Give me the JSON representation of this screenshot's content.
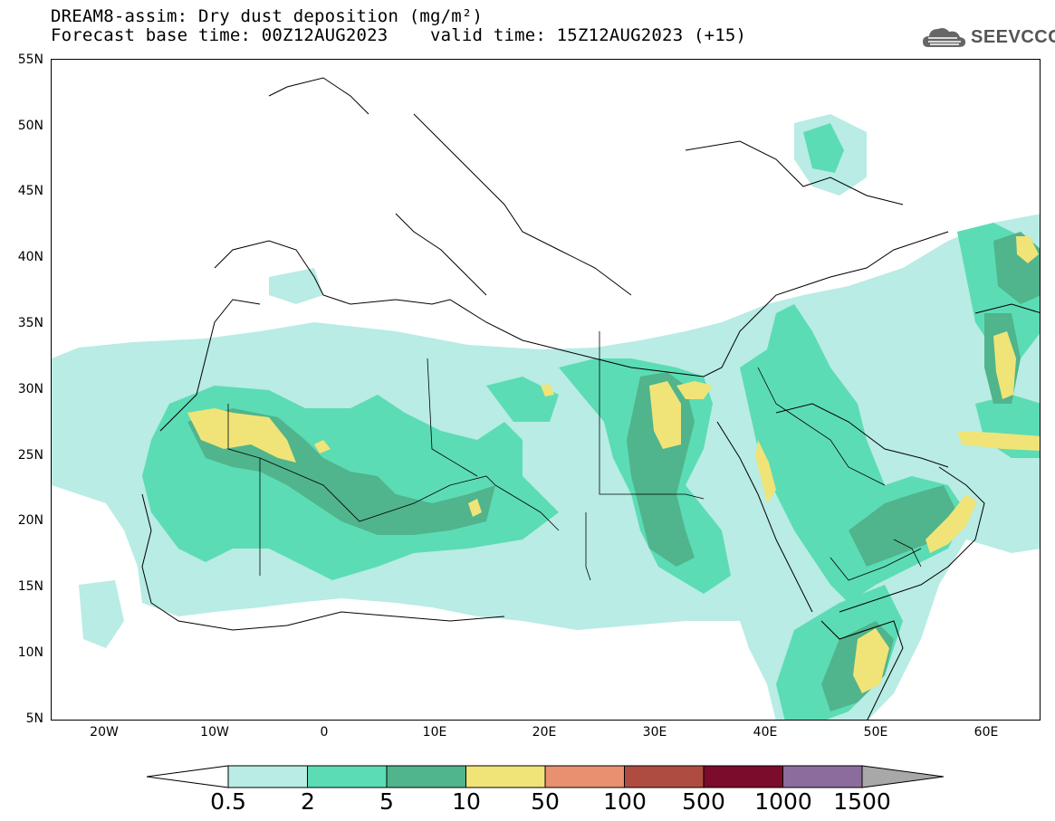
{
  "header": {
    "title": "DREAM8-assim: Dry dust deposition (mg/m²)",
    "forecast_line": "Forecast base time: 00Z12AUG2023    valid time: 15Z12AUG2023 (+15)"
  },
  "logo": {
    "text": "SEEVCCC",
    "icon": "cloud-logo-icon"
  },
  "map": {
    "lat_labels": [
      "55N",
      "50N",
      "45N",
      "40N",
      "35N",
      "30N",
      "25N",
      "20N",
      "15N",
      "10N",
      "5N"
    ],
    "lon_labels": [
      "20W",
      "10W",
      "0",
      "10E",
      "20E",
      "30E",
      "40E",
      "50E",
      "60E"
    ]
  },
  "legend": {
    "labels": [
      "0.5",
      "2",
      "5",
      "10",
      "50",
      "100",
      "500",
      "1000",
      "1500"
    ],
    "colors": [
      "#b8ece4",
      "#5cdcb4",
      "#50b48c",
      "#f0e478",
      "#e89070",
      "#ae4c40",
      "#7c0c2c",
      "#8c6c9c",
      "#a8a8a8"
    ]
  }
}
